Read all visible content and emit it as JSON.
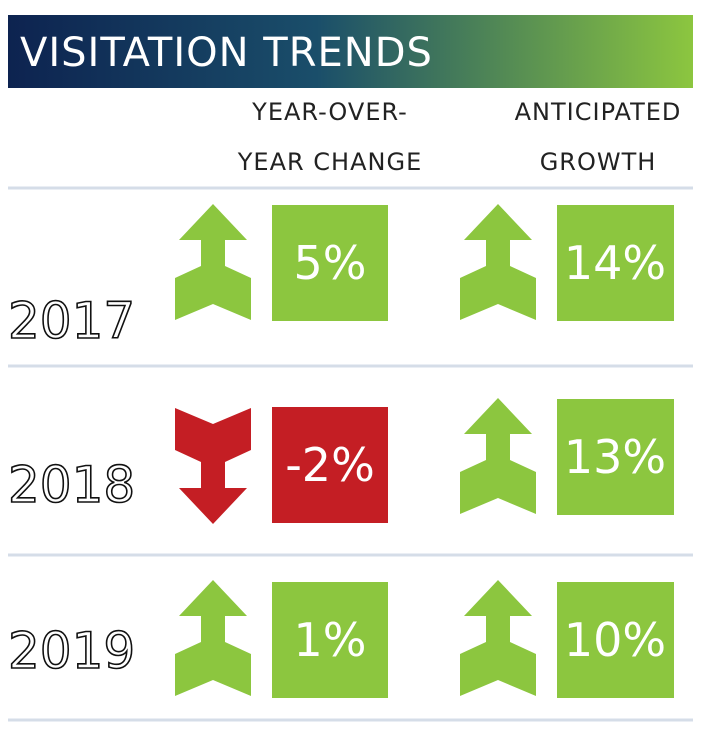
{
  "title": "VISITATION TRENDS",
  "columns": [
    {
      "lines": [
        "YEAR-OVER-",
        "YEAR CHANGE"
      ]
    },
    {
      "lines": [
        "ANTICIPATED",
        "GROWTH"
      ]
    }
  ],
  "rows": [
    {
      "year": "2017",
      "change": "5%",
      "growth": "14%"
    },
    {
      "year": "2018",
      "change": "-2%",
      "growth": "13%"
    },
    {
      "year": "2019",
      "change": "1%",
      "growth": "10%"
    }
  ]
}
